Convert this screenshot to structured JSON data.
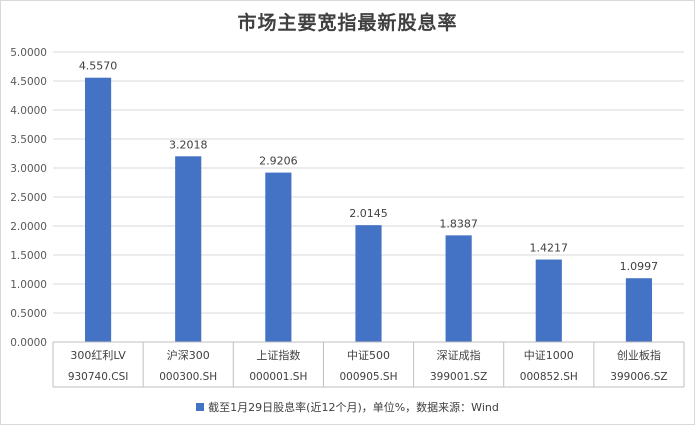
{
  "chart_data": {
    "type": "bar",
    "title": "市场主要宽指最新股息率",
    "categories": [
      "300红利LV",
      "沪深300",
      "上证指数",
      "中证500",
      "深证成指",
      "中证1000",
      "创业板指"
    ],
    "codes": [
      "930740.CSI",
      "000300.SH",
      "000001.SH",
      "000905.SH",
      "399001.SZ",
      "000852.SH",
      "399006.SZ"
    ],
    "series": [
      {
        "name": "截至1月29日股息率(近12个月)，单位%，数据来源：Wind",
        "values": [
          4.557,
          3.2018,
          2.9206,
          2.0145,
          1.8387,
          1.4217,
          1.0997
        ],
        "color": "#4472c4"
      }
    ],
    "value_labels": [
      "4.5570",
      "3.2018",
      "2.9206",
      "2.0145",
      "1.8387",
      "1.4217",
      "1.0997"
    ],
    "yticks": [
      "0.0000",
      "0.5000",
      "1.0000",
      "1.5000",
      "2.0000",
      "2.5000",
      "3.0000",
      "3.5000",
      "4.0000",
      "4.5000",
      "5.0000"
    ],
    "ylim": [
      0,
      5
    ],
    "grid": true,
    "legend_position": "bottom"
  }
}
